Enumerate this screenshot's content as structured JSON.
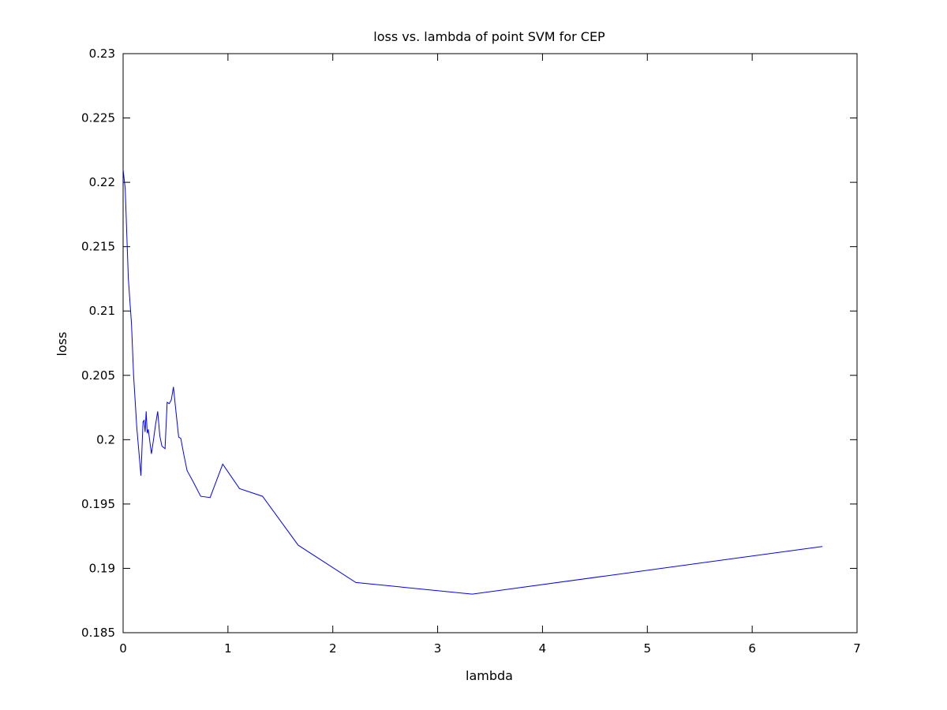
{
  "chart_data": {
    "type": "line",
    "title": "loss vs. lambda of point SVM for CEP",
    "xlabel": "lambda",
    "ylabel": "loss",
    "xlim": [
      0,
      7
    ],
    "ylim": [
      0.185,
      0.23
    ],
    "xticks": [
      "0",
      "1",
      "2",
      "3",
      "4",
      "5",
      "6",
      "7"
    ],
    "yticks": [
      "0.185",
      "0.19",
      "0.195",
      "0.2",
      "0.205",
      "0.21",
      "0.215",
      "0.22",
      "0.225",
      "0.23"
    ],
    "grid": false,
    "series": [
      {
        "color": "#0000ff",
        "x": [
          0.0,
          0.02,
          0.05,
          0.08,
          0.1,
          0.13,
          0.17,
          0.19,
          0.2,
          0.21,
          0.22,
          0.23,
          0.24,
          0.27,
          0.29,
          0.31,
          0.33,
          0.35,
          0.37,
          0.4,
          0.42,
          0.44,
          0.46,
          0.48,
          0.5,
          0.53,
          0.55,
          0.58,
          0.61,
          0.67,
          0.74,
          0.83,
          0.95,
          1.11,
          1.33,
          1.67,
          2.22,
          3.33,
          6.67
        ],
        "y": [
          0.221,
          0.2195,
          0.2125,
          0.209,
          0.205,
          0.201,
          0.1972,
          0.2014,
          0.2015,
          0.2006,
          0.2022,
          0.2005,
          0.2008,
          0.1989,
          0.2,
          0.2012,
          0.2022,
          0.2003,
          0.1995,
          0.1993,
          0.2029,
          0.2028,
          0.2031,
          0.2041,
          0.2025,
          0.2002,
          0.2001,
          0.1988,
          0.1976,
          0.1967,
          0.1956,
          0.1955,
          0.1981,
          0.1962,
          0.1956,
          0.1918,
          0.1889,
          0.188,
          0.1917
        ]
      }
    ]
  }
}
